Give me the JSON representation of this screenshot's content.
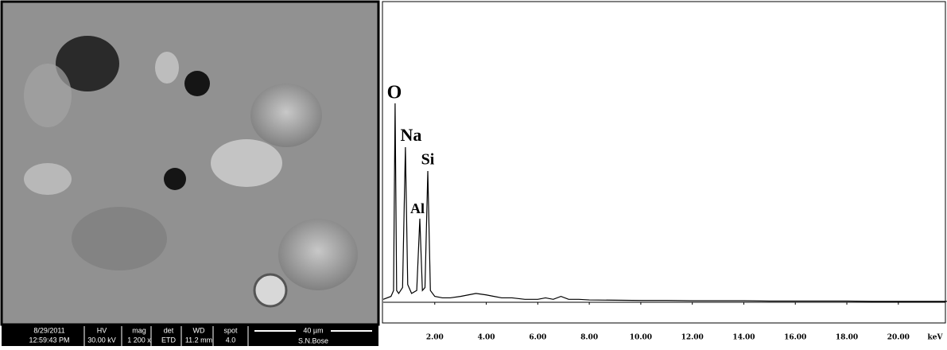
{
  "sem_panel": {
    "date": "8/29/2011",
    "time": "12:59:43 PM",
    "fields": [
      {
        "label": "HV",
        "value": "30.00 kV"
      },
      {
        "label": "mag",
        "value": "1 200 x"
      },
      {
        "label": "det",
        "value": "ETD"
      },
      {
        "label": "WD",
        "value": "11.2 mm"
      },
      {
        "label": "spot",
        "value": "4.0"
      }
    ],
    "scale_bar": "40 µm",
    "operator": "S.N.Bose"
  },
  "chart_data": {
    "type": "line",
    "xlabel": "keV",
    "annotations": [
      "O",
      "Na",
      "Al",
      "Si"
    ],
    "x": [
      0,
      0.3,
      0.4,
      0.46,
      0.52,
      0.6,
      0.75,
      0.86,
      0.95,
      1.1,
      1.3,
      1.42,
      1.52,
      1.62,
      1.73,
      1.83,
      2.0,
      2.3,
      2.6,
      3.0,
      3.3,
      3.6,
      4.0,
      4.3,
      4.6,
      5.0,
      5.5,
      6.0,
      6.3,
      6.6,
      6.9,
      7.2,
      7.6,
      8.0,
      9.0,
      10,
      11,
      12,
      13,
      14,
      15,
      16,
      17,
      18,
      19,
      20,
      21,
      22
    ],
    "series": [
      {
        "color": "#000000",
        "values": [
          1,
          2,
          4,
          67.6,
          4,
          3,
          5,
          52.7,
          6,
          3,
          4,
          28.4,
          4,
          5,
          44.6,
          4,
          2,
          1.5,
          1.5,
          2,
          2.5,
          3,
          2.5,
          2,
          1.5,
          1.5,
          1,
          1,
          1.5,
          1,
          2,
          1,
          1,
          0.8,
          0.7,
          0.6,
          0.6,
          0.5,
          0.5,
          0.5,
          0.4,
          0.4,
          0.4,
          0.4,
          0.3,
          0.3,
          0.3,
          0.3
        ]
      }
    ],
    "xlim": [
      0,
      22
    ],
    "ylim": [
      0,
      100
    ],
    "xticks": [
      {
        "value": 2,
        "label": "2.00"
      },
      {
        "value": 4,
        "label": "4.00"
      },
      {
        "value": 6,
        "label": "6.00"
      },
      {
        "value": 8,
        "label": "8.00"
      },
      {
        "value": 10,
        "label": "10.00"
      },
      {
        "value": 12,
        "label": "12.00"
      },
      {
        "value": 14,
        "label": "14.00"
      },
      {
        "value": 16,
        "label": "16.00"
      },
      {
        "value": 18,
        "label": "18.00"
      },
      {
        "value": 20,
        "label": "20.00"
      }
    ]
  }
}
